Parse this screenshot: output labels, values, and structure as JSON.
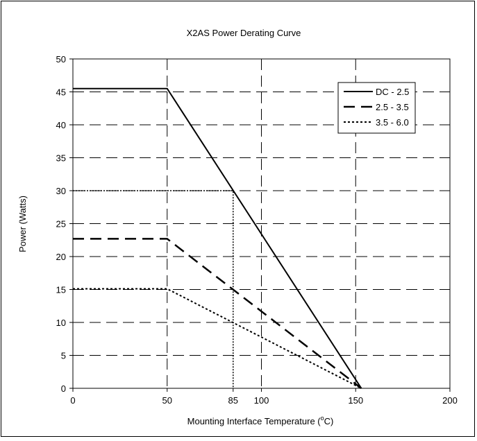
{
  "chart_data": {
    "type": "line",
    "title": "X2AS Power Derating Curve",
    "xlabel": "Mounting Interface Temperature (°C)",
    "xlabel_main": "Mounting Interface Temperature (",
    "xlabel_sup": "o",
    "xlabel_end": "C)",
    "ylabel": "Power (Watts)",
    "xlim": [
      0,
      200
    ],
    "ylim": [
      0,
      50
    ],
    "xticks": [
      0,
      50,
      85,
      100,
      150,
      200
    ],
    "yticks": [
      0,
      5,
      10,
      15,
      20,
      25,
      30,
      35,
      40,
      45,
      50
    ],
    "grid": true,
    "legend_position": "top-right",
    "series": [
      {
        "name": "DC - 2.5",
        "style": "solid",
        "x": [
          0,
          50,
          153
        ],
        "y": [
          45.5,
          45.5,
          0
        ]
      },
      {
        "name": "2.5 - 3.5",
        "style": "dashed",
        "x": [
          0,
          50,
          153
        ],
        "y": [
          22.7,
          22.7,
          0
        ]
      },
      {
        "name": "3.5 - 6.0",
        "style": "dotted",
        "x": [
          0,
          50,
          153
        ],
        "y": [
          15.1,
          15.1,
          0
        ]
      }
    ],
    "reference_lines": [
      {
        "style": "dotted",
        "x": [
          0,
          85,
          85
        ],
        "y": [
          30,
          30,
          0
        ]
      }
    ]
  }
}
